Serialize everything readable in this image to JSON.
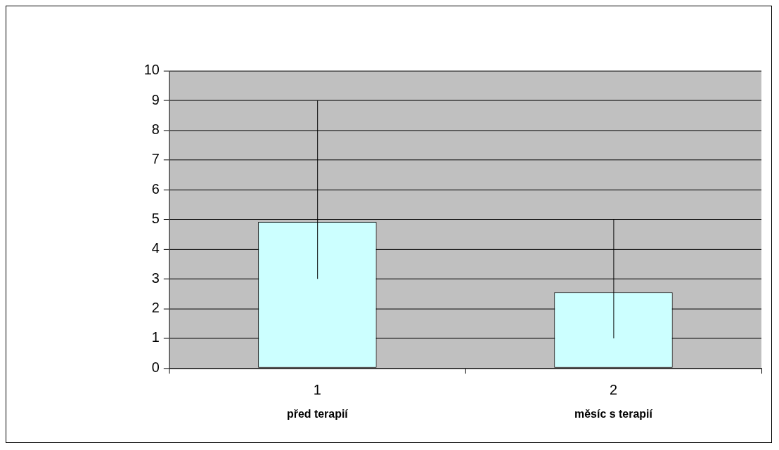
{
  "chart_data": {
    "type": "bar",
    "categories": [
      "1",
      "2"
    ],
    "values": [
      4.92,
      2.55
    ],
    "color": "#ccffff",
    "errors": [
      [
        3,
        9
      ],
      [
        1,
        5
      ]
    ],
    "ylim": [
      0,
      10
    ],
    "yticks": [
      0,
      1,
      2,
      3,
      4,
      5,
      6,
      7,
      8,
      9,
      10
    ],
    "grid": "y",
    "legend": false,
    "annotations": [
      "před terapií",
      "měsíc s terapií"
    ]
  }
}
